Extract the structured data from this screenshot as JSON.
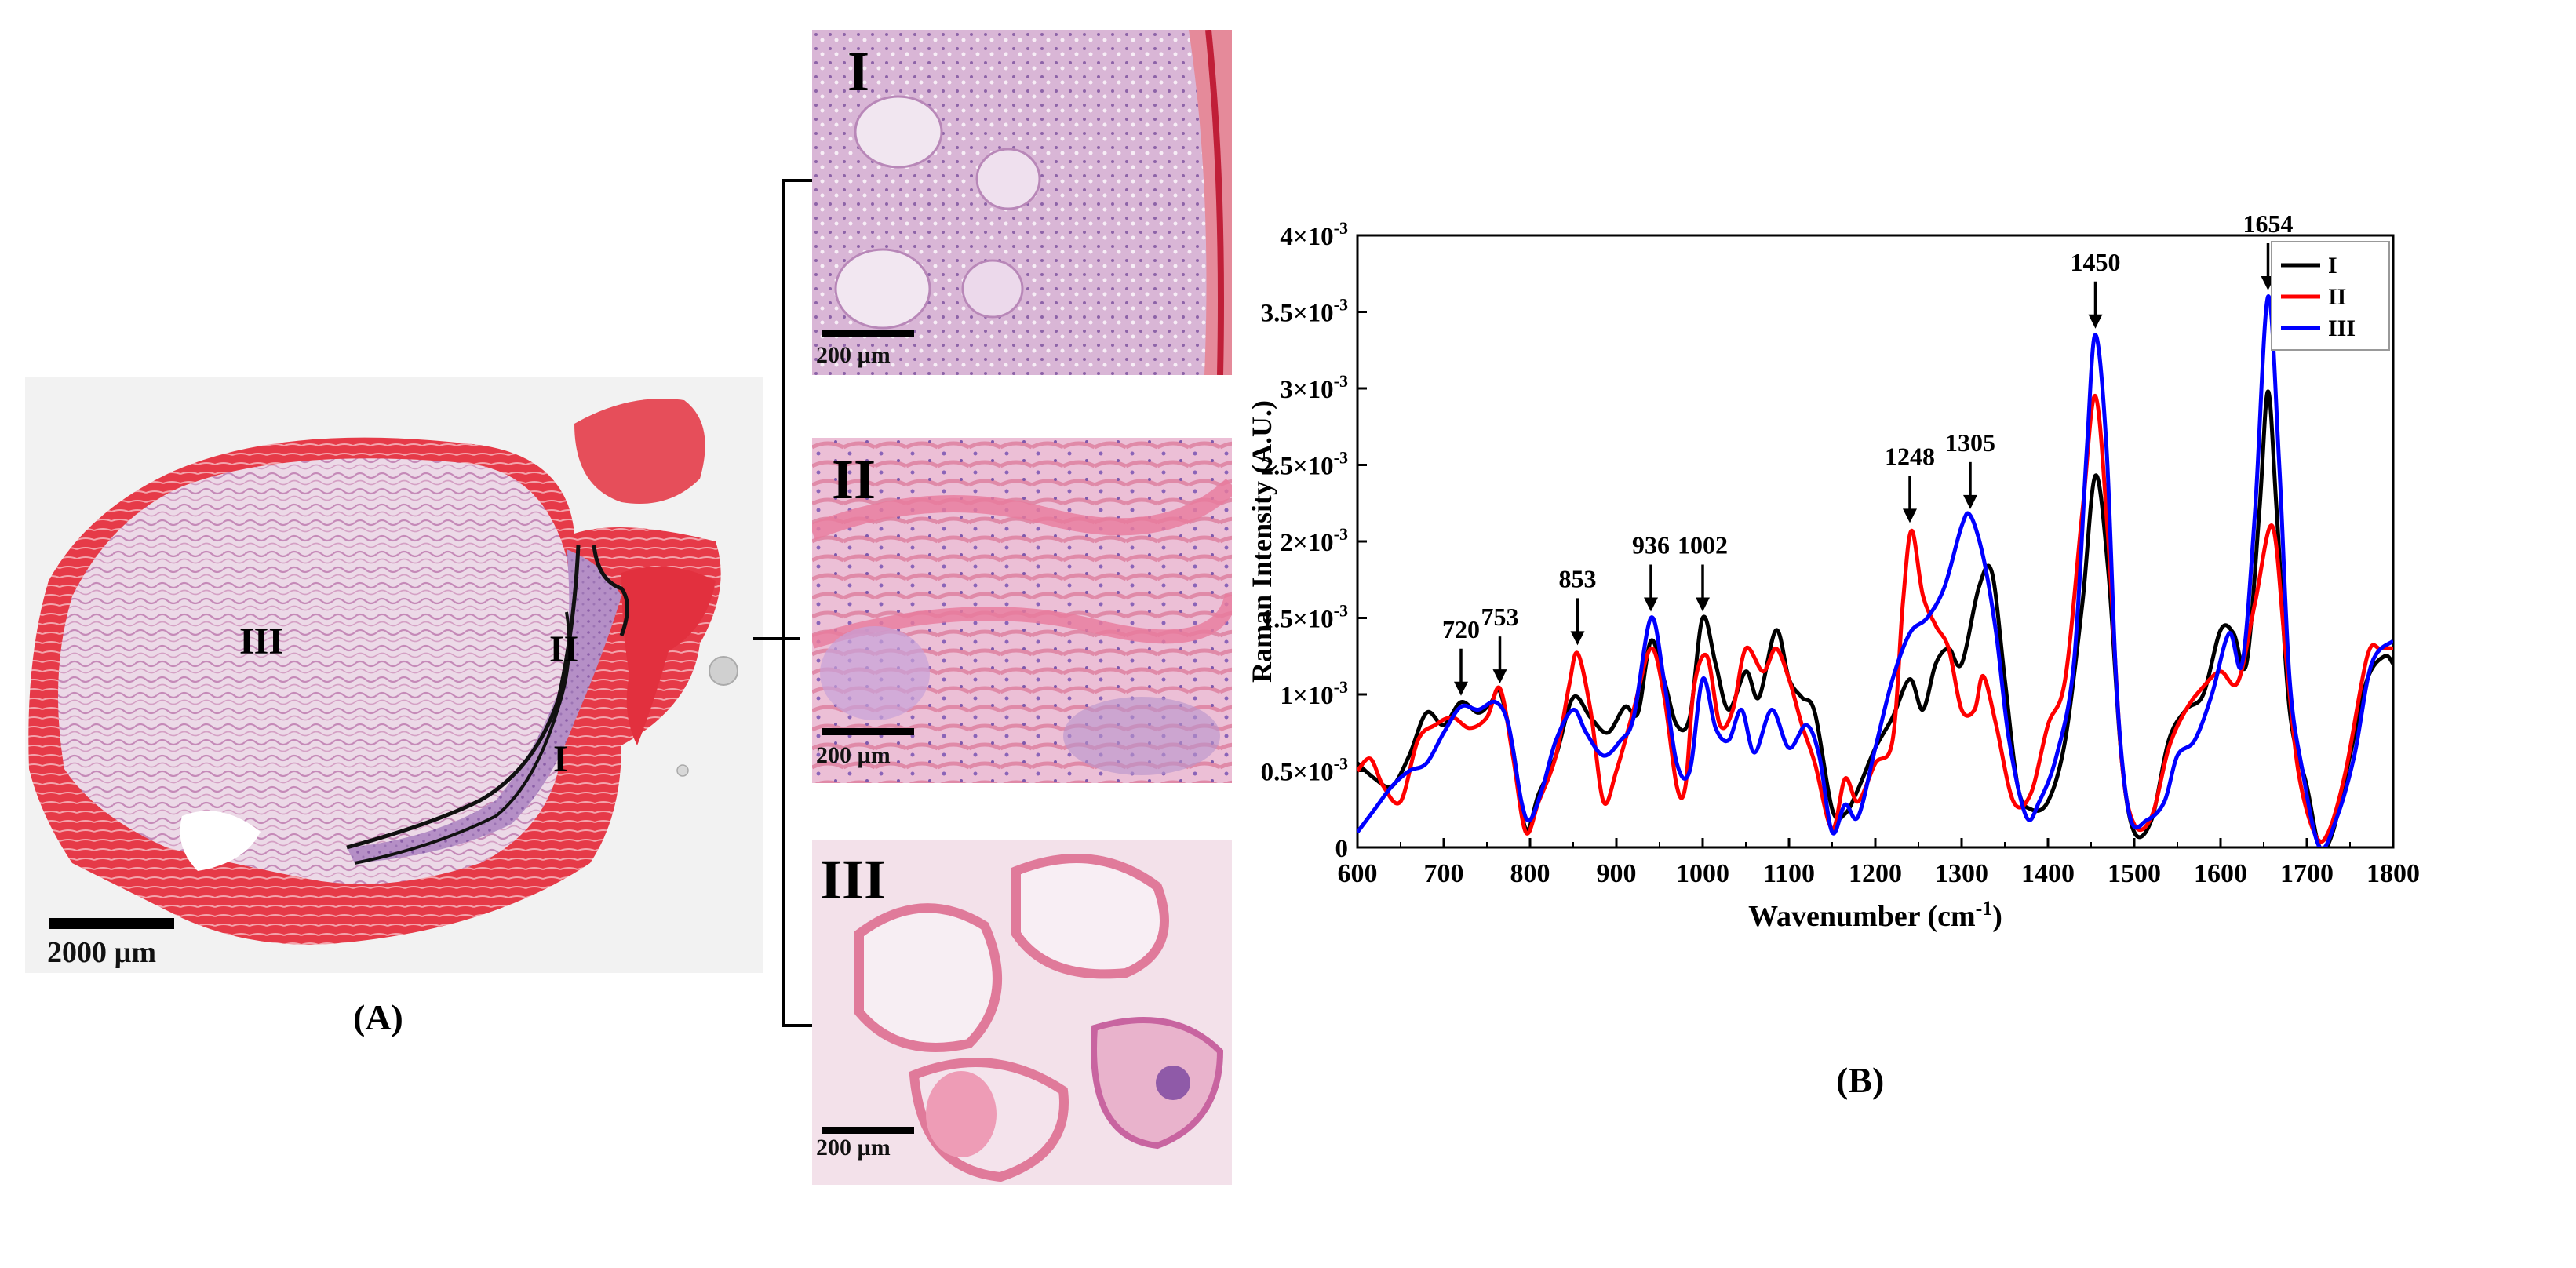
{
  "panel_a": {
    "label": "(A)",
    "region_labels": [
      "III",
      "II",
      "I"
    ],
    "scale_bar": "2000 µm"
  },
  "insets": [
    {
      "label": "I",
      "scale_bar": "200 µm"
    },
    {
      "label": "II",
      "scale_bar": "200 µm"
    },
    {
      "label": "III",
      "scale_bar": "200 µm"
    }
  ],
  "panel_b": {
    "label": "(B)"
  },
  "colors": {
    "I": "#000000",
    "II": "#ff0000",
    "III": "#0000ff",
    "tissue_pink": "#e58fb0",
    "tissue_red": "#e0202e",
    "tissue_purple": "#b48ac4"
  },
  "chart_data": {
    "type": "line",
    "xlabel": "Wavenumber (cm-1)",
    "ylabel": "Raman Intensity (A.U.)",
    "xlim": [
      600,
      1800
    ],
    "ylim": [
      0,
      0.004
    ],
    "xticks": [
      600,
      700,
      800,
      900,
      1000,
      1100,
      1200,
      1300,
      1400,
      1500,
      1600,
      1700,
      1800
    ],
    "yticks": [
      {
        "value": 0,
        "label": "0"
      },
      {
        "value": 0.0005,
        "label": "0.5×10-3"
      },
      {
        "value": 0.001,
        "label": "1×10-3"
      },
      {
        "value": 0.0015,
        "label": "1.5×10-3"
      },
      {
        "value": 0.002,
        "label": "2×10-3"
      },
      {
        "value": 0.0025,
        "label": "2.5×10-3"
      },
      {
        "value": 0.003,
        "label": "3×10-3"
      },
      {
        "value": 0.0035,
        "label": "3.5×10-3"
      },
      {
        "value": 0.004,
        "label": "4×10-3"
      }
    ],
    "legend_position": "top-right",
    "annotations": [
      {
        "label": "720",
        "x": 720,
        "y": 0.00095
      },
      {
        "label": "753",
        "x": 765,
        "y": 0.00103
      },
      {
        "label": "853",
        "x": 855,
        "y": 0.00128
      },
      {
        "label": "936",
        "x": 940,
        "y": 0.0015
      },
      {
        "label": "1002",
        "x": 1000,
        "y": 0.0015
      },
      {
        "label": "1248",
        "x": 1240,
        "y": 0.00208
      },
      {
        "label": "1305",
        "x": 1310,
        "y": 0.00217
      },
      {
        "label": "1450",
        "x": 1455,
        "y": 0.00335
      },
      {
        "label": "1654",
        "x": 1655,
        "y": 0.0036
      }
    ],
    "series": [
      {
        "name": "I",
        "color": "#000000",
        "points": [
          [
            600,
            0.00055
          ],
          [
            620,
            0.00045
          ],
          [
            640,
            0.0004
          ],
          [
            660,
            0.0006
          ],
          [
            680,
            0.00088
          ],
          [
            700,
            0.0008
          ],
          [
            720,
            0.00095
          ],
          [
            740,
            0.00088
          ],
          [
            755,
            0.00095
          ],
          [
            765,
            0.00102
          ],
          [
            780,
            0.00065
          ],
          [
            795,
            0.00012
          ],
          [
            810,
            0.00035
          ],
          [
            830,
            0.0006
          ],
          [
            850,
            0.00098
          ],
          [
            870,
            0.00085
          ],
          [
            890,
            0.00075
          ],
          [
            910,
            0.00092
          ],
          [
            925,
            0.00088
          ],
          [
            940,
            0.00135
          ],
          [
            955,
            0.0011
          ],
          [
            970,
            0.0008
          ],
          [
            985,
            0.00085
          ],
          [
            1000,
            0.0015
          ],
          [
            1015,
            0.0012
          ],
          [
            1030,
            0.0009
          ],
          [
            1050,
            0.00115
          ],
          [
            1065,
            0.00098
          ],
          [
            1085,
            0.00142
          ],
          [
            1100,
            0.0011
          ],
          [
            1115,
            0.00098
          ],
          [
            1130,
            0.00088
          ],
          [
            1150,
            0.00025
          ],
          [
            1165,
            0.00022
          ],
          [
            1180,
            0.00038
          ],
          [
            1200,
            0.00065
          ],
          [
            1220,
            0.00085
          ],
          [
            1240,
            0.0011
          ],
          [
            1255,
            0.0009
          ],
          [
            1270,
            0.0012
          ],
          [
            1285,
            0.0013
          ],
          [
            1300,
            0.0012
          ],
          [
            1320,
            0.0017
          ],
          [
            1335,
            0.0018
          ],
          [
            1350,
            0.0011
          ],
          [
            1365,
            0.0004
          ],
          [
            1380,
            0.00025
          ],
          [
            1400,
            0.0003
          ],
          [
            1420,
            0.0007
          ],
          [
            1440,
            0.0016
          ],
          [
            1455,
            0.00243
          ],
          [
            1470,
            0.0018
          ],
          [
            1485,
            0.0006
          ],
          [
            1500,
            0.0001
          ],
          [
            1520,
            0.00018
          ],
          [
            1540,
            0.0007
          ],
          [
            1560,
            0.0009
          ],
          [
            1580,
            0.001
          ],
          [
            1600,
            0.00142
          ],
          [
            1615,
            0.0014
          ],
          [
            1630,
            0.0012
          ],
          [
            1645,
            0.0022
          ],
          [
            1655,
            0.00298
          ],
          [
            1665,
            0.0022
          ],
          [
            1680,
            0.0009
          ],
          [
            1700,
            0.0004
          ],
          [
            1715,
            0.0
          ],
          [
            1730,
            0.0001
          ],
          [
            1750,
            0.0006
          ],
          [
            1770,
            0.0011
          ],
          [
            1790,
            0.00125
          ],
          [
            1800,
            0.0012
          ]
        ]
      },
      {
        "name": "II",
        "color": "#ff0000",
        "points": [
          [
            600,
            0.0005
          ],
          [
            615,
            0.00058
          ],
          [
            630,
            0.0004
          ],
          [
            650,
            0.0003
          ],
          [
            670,
            0.0007
          ],
          [
            690,
            0.0008
          ],
          [
            710,
            0.00085
          ],
          [
            730,
            0.00078
          ],
          [
            750,
            0.00085
          ],
          [
            765,
            0.00104
          ],
          [
            780,
            0.0006
          ],
          [
            795,
            0.0001
          ],
          [
            810,
            0.0003
          ],
          [
            830,
            0.0006
          ],
          [
            845,
            0.00105
          ],
          [
            855,
            0.00127
          ],
          [
            870,
            0.0009
          ],
          [
            885,
            0.0003
          ],
          [
            900,
            0.0005
          ],
          [
            920,
            0.0009
          ],
          [
            940,
            0.0013
          ],
          [
            955,
            0.001
          ],
          [
            970,
            0.0004
          ],
          [
            980,
            0.0004
          ],
          [
            990,
            0.00105
          ],
          [
            1005,
            0.00125
          ],
          [
            1020,
            0.0008
          ],
          [
            1035,
            0.0009
          ],
          [
            1050,
            0.0013
          ],
          [
            1070,
            0.00115
          ],
          [
            1085,
            0.0013
          ],
          [
            1100,
            0.0011
          ],
          [
            1115,
            0.0008
          ],
          [
            1130,
            0.00055
          ],
          [
            1150,
            0.00012
          ],
          [
            1165,
            0.00045
          ],
          [
            1180,
            0.0003
          ],
          [
            1200,
            0.00055
          ],
          [
            1220,
            0.0007
          ],
          [
            1232,
            0.0016
          ],
          [
            1242,
            0.00207
          ],
          [
            1255,
            0.00165
          ],
          [
            1270,
            0.00145
          ],
          [
            1285,
            0.0013
          ],
          [
            1300,
            0.0009
          ],
          [
            1315,
            0.0009
          ],
          [
            1325,
            0.00112
          ],
          [
            1340,
            0.0008
          ],
          [
            1360,
            0.0003
          ],
          [
            1380,
            0.00035
          ],
          [
            1400,
            0.0008
          ],
          [
            1420,
            0.0011
          ],
          [
            1440,
            0.0022
          ],
          [
            1455,
            0.00295
          ],
          [
            1470,
            0.002
          ],
          [
            1485,
            0.0006
          ],
          [
            1500,
            0.00015
          ],
          [
            1520,
            0.0002
          ],
          [
            1540,
            0.00065
          ],
          [
            1560,
            0.0009
          ],
          [
            1580,
            0.00105
          ],
          [
            1600,
            0.00115
          ],
          [
            1620,
            0.00108
          ],
          [
            1640,
            0.0016
          ],
          [
            1660,
            0.0021
          ],
          [
            1675,
            0.0013
          ],
          [
            1690,
            0.0005
          ],
          [
            1710,
            8e-05
          ],
          [
            1725,
            0.0001
          ],
          [
            1745,
            0.0005
          ],
          [
            1770,
            0.00125
          ],
          [
            1785,
            0.0013
          ],
          [
            1800,
            0.0013
          ]
        ]
      },
      {
        "name": "III",
        "color": "#0000ff",
        "points": [
          [
            600,
            0.0001
          ],
          [
            620,
            0.00025
          ],
          [
            640,
            0.0004
          ],
          [
            660,
            0.0005
          ],
          [
            680,
            0.00055
          ],
          [
            700,
            0.00075
          ],
          [
            720,
            0.00092
          ],
          [
            740,
            0.0009
          ],
          [
            760,
            0.00095
          ],
          [
            775,
            0.0008
          ],
          [
            790,
            0.0003
          ],
          [
            800,
            0.00018
          ],
          [
            815,
            0.0004
          ],
          [
            830,
            0.0007
          ],
          [
            850,
            0.0009
          ],
          [
            865,
            0.00075
          ],
          [
            885,
            0.0006
          ],
          [
            905,
            0.0007
          ],
          [
            920,
            0.00085
          ],
          [
            940,
            0.0015
          ],
          [
            955,
            0.0011
          ],
          [
            970,
            0.00055
          ],
          [
            985,
            0.0005
          ],
          [
            1000,
            0.0011
          ],
          [
            1015,
            0.00078
          ],
          [
            1030,
            0.0007
          ],
          [
            1045,
            0.0009
          ],
          [
            1060,
            0.00062
          ],
          [
            1080,
            0.0009
          ],
          [
            1100,
            0.00065
          ],
          [
            1120,
            0.0008
          ],
          [
            1135,
            0.0006
          ],
          [
            1150,
            0.0001
          ],
          [
            1165,
            0.00028
          ],
          [
            1180,
            0.0002
          ],
          [
            1200,
            0.00065
          ],
          [
            1220,
            0.0011
          ],
          [
            1240,
            0.0014
          ],
          [
            1260,
            0.0015
          ],
          [
            1280,
            0.0017
          ],
          [
            1300,
            0.0021
          ],
          [
            1310,
            0.00217
          ],
          [
            1325,
            0.0019
          ],
          [
            1340,
            0.0014
          ],
          [
            1355,
            0.0007
          ],
          [
            1375,
            0.0002
          ],
          [
            1390,
            0.0003
          ],
          [
            1410,
            0.0006
          ],
          [
            1430,
            0.0012
          ],
          [
            1445,
            0.0026
          ],
          [
            1455,
            0.00335
          ],
          [
            1468,
            0.0026
          ],
          [
            1480,
            0.001
          ],
          [
            1495,
            0.0002
          ],
          [
            1515,
            0.00018
          ],
          [
            1535,
            0.0003
          ],
          [
            1550,
            0.0006
          ],
          [
            1570,
            0.0007
          ],
          [
            1590,
            0.001
          ],
          [
            1610,
            0.0014
          ],
          [
            1625,
            0.0012
          ],
          [
            1640,
            0.0022
          ],
          [
            1655,
            0.0036
          ],
          [
            1668,
            0.0025
          ],
          [
            1680,
            0.0011
          ],
          [
            1695,
            0.0005
          ],
          [
            1715,
            0.0
          ],
          [
            1735,
            0.0002
          ],
          [
            1755,
            0.0006
          ],
          [
            1775,
            0.0012
          ],
          [
            1800,
            0.00135
          ]
        ]
      }
    ]
  }
}
